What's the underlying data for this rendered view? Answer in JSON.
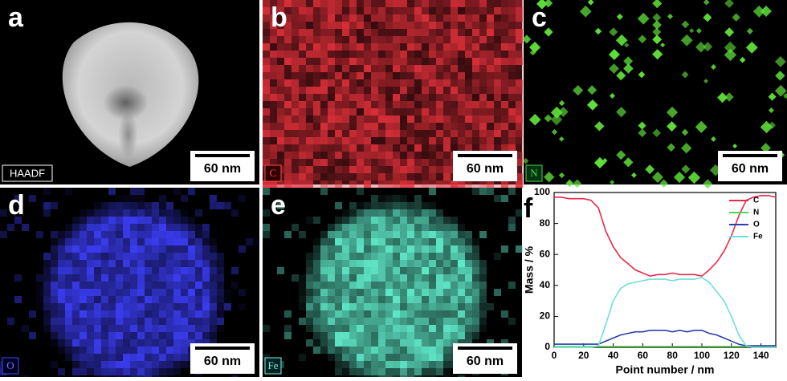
{
  "panels": [
    {
      "letter": "a",
      "label": "HAADF",
      "scale_bar": "60 nm"
    },
    {
      "letter": "b",
      "label": "C",
      "scale_bar": "60 nm"
    },
    {
      "letter": "c",
      "label": "N",
      "scale_bar": "60 nm"
    },
    {
      "letter": "d",
      "label": "O",
      "scale_bar": "60 nm"
    },
    {
      "letter": "e",
      "label": "Fe",
      "scale_bar": "60 nm"
    }
  ],
  "chart_data": {
    "type": "line",
    "panel_letter": "f",
    "x_label": "Point number / nm",
    "y_label": "Mass / %",
    "x": [
      0,
      5,
      10,
      15,
      20,
      25,
      30,
      35,
      40,
      45,
      50,
      55,
      60,
      65,
      70,
      75,
      80,
      85,
      90,
      95,
      100,
      105,
      110,
      115,
      120,
      125,
      130,
      135,
      140,
      145,
      150
    ],
    "series": [
      {
        "name": "C",
        "color": "#e8294a",
        "values": [
          97,
          97,
          96,
          96,
          96,
          95,
          90,
          75,
          65,
          58,
          54,
          50,
          48,
          46,
          47,
          47,
          48,
          47,
          47,
          47,
          46,
          50,
          55,
          62,
          72,
          85,
          95,
          97,
          98,
          98,
          97
        ]
      },
      {
        "name": "N",
        "color": "#4cd64c",
        "values": [
          0.5,
          0.5,
          0.5,
          0.5,
          0.5,
          0.5,
          0.5,
          0.5,
          0.5,
          0.5,
          0.5,
          0.5,
          0.5,
          0.5,
          0.5,
          0.5,
          0.5,
          0.5,
          0.5,
          0.5,
          0.5,
          0.5,
          0.5,
          0.5,
          0.5,
          0.5,
          0.5,
          0.5,
          0.5,
          0.5,
          0.5
        ]
      },
      {
        "name": "O",
        "color": "#2a3fb0",
        "values": [
          2,
          2,
          2,
          2,
          2,
          2,
          2,
          4,
          6,
          8,
          9,
          10,
          10,
          11,
          11,
          11,
          10,
          11,
          10,
          11,
          11,
          9,
          8,
          6,
          4,
          2,
          1,
          1,
          1,
          1,
          1
        ]
      },
      {
        "name": "Fe",
        "color": "#6fe0d8",
        "values": [
          0,
          0,
          0,
          0,
          0,
          0,
          1,
          15,
          30,
          38,
          41,
          42,
          43,
          44,
          44,
          44,
          43,
          44,
          44,
          44,
          45,
          42,
          36,
          30,
          20,
          8,
          1,
          0,
          0,
          0,
          0
        ]
      }
    ],
    "xlim": [
      0,
      150
    ],
    "xticks": [
      0,
      20,
      40,
      60,
      80,
      100,
      120,
      140
    ],
    "ylim": [
      0,
      100
    ],
    "yticks": [
      0,
      20,
      40,
      60,
      80,
      100
    ],
    "legend": "top-right"
  }
}
